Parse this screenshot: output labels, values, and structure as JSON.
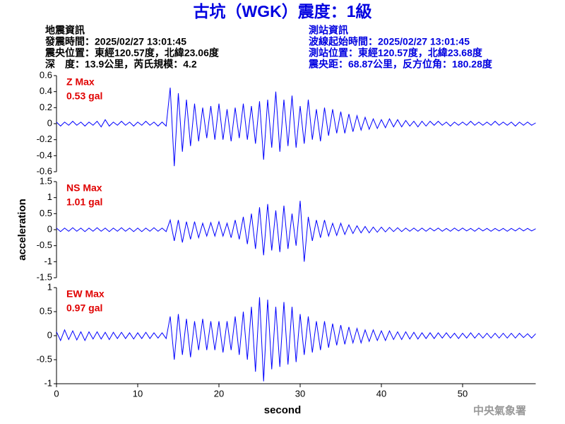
{
  "title": "古坑（WGK）震度：1級",
  "header": {
    "left": [
      "地震資訊",
      "發震時間：2025/02/27 13:01:45",
      "震央位置：東經120.57度，北緯23.06度",
      "深　度：13.9公里，芮氏規模：4.2"
    ],
    "right": [
      "測站資訊",
      "波線起始時間：2025/02/27 13:01:45",
      "測站位置：東經120.57度，北緯23.68度",
      "震央距：68.87公里，反方位角：180.28度"
    ]
  },
  "footer": "中央氣象署",
  "chart_data": [
    {
      "type": "line",
      "annotation": "Z Max",
      "max_label": "0.53 gal",
      "xlim": [
        0,
        59
      ],
      "ylim": [
        -0.6,
        0.6
      ],
      "yticks": [
        0.6,
        0.4,
        0.2,
        0,
        -0.2,
        -0.4,
        -0.6
      ],
      "x": [
        0,
        0.5,
        1,
        1.5,
        2,
        2.5,
        3,
        3.5,
        4,
        4.5,
        5,
        5.5,
        6,
        6.5,
        7,
        7.5,
        8,
        8.5,
        9,
        9.5,
        10,
        10.5,
        11,
        11.5,
        12,
        12.5,
        13,
        13.5,
        14,
        14.5,
        15,
        15.5,
        16,
        16.5,
        17,
        17.5,
        18,
        18.5,
        19,
        19.5,
        20,
        20.5,
        21,
        21.5,
        22,
        22.5,
        23,
        23.5,
        24,
        24.5,
        25,
        25.5,
        26,
        26.5,
        27,
        27.5,
        28,
        28.5,
        29,
        29.5,
        30,
        30.5,
        31,
        31.5,
        32,
        32.5,
        33,
        33.5,
        34,
        34.5,
        35,
        35.5,
        36,
        36.5,
        37,
        37.5,
        38,
        38.5,
        39,
        39.5,
        40,
        40.5,
        41,
        41.5,
        42,
        42.5,
        43,
        43.5,
        44,
        44.5,
        45,
        45.5,
        46,
        46.5,
        47,
        47.5,
        48,
        48.5,
        49,
        49.5,
        50,
        50.5,
        51,
        51.5,
        52,
        52.5,
        53,
        53.5,
        54,
        54.5,
        55,
        55.5,
        56,
        56.5,
        57,
        57.5,
        58,
        58.5,
        59
      ],
      "series": [
        {
          "color": "#0000ff",
          "values": [
            0.02,
            -0.03,
            0.02,
            -0.02,
            0.03,
            -0.02,
            0.02,
            -0.03,
            0.02,
            -0.02,
            0.03,
            -0.04,
            0.05,
            -0.03,
            0.02,
            -0.02,
            0.03,
            -0.02,
            0.02,
            -0.03,
            0.02,
            -0.02,
            0.03,
            -0.02,
            0.02,
            -0.03,
            0.02,
            -0.03,
            0.45,
            -0.53,
            0.38,
            -0.35,
            0.3,
            -0.28,
            0.25,
            -0.22,
            0.2,
            -0.18,
            0.22,
            -0.2,
            0.25,
            -0.2,
            0.18,
            -0.22,
            0.2,
            -0.18,
            0.25,
            -0.2,
            0.22,
            -0.25,
            0.28,
            -0.45,
            0.3,
            -0.3,
            0.4,
            -0.35,
            0.3,
            -0.28,
            0.35,
            -0.3,
            0.22,
            -0.25,
            0.3,
            -0.2,
            0.18,
            -0.22,
            0.2,
            -0.15,
            0.18,
            -0.12,
            0.15,
            -0.12,
            0.12,
            -0.1,
            0.1,
            -0.08,
            0.08,
            -0.07,
            0.06,
            -0.06,
            0.05,
            -0.05,
            0.06,
            -0.04,
            0.05,
            -0.04,
            0.04,
            -0.03,
            0.03,
            -0.04,
            0.03,
            -0.03,
            0.03,
            -0.02,
            0.03,
            -0.02,
            0.02,
            -0.03,
            0.02,
            -0.02,
            0.02,
            -0.02,
            0.03,
            -0.02,
            0.02,
            -0.02,
            0.02,
            -0.02,
            0.03,
            -0.02,
            0.02,
            -0.02,
            0.02,
            -0.03,
            0.02,
            -0.02,
            0.02,
            -0.02,
            0.01
          ]
        }
      ]
    },
    {
      "type": "line",
      "annotation": "NS Max",
      "max_label": "1.01 gal",
      "ylabel": "acceleration",
      "xlim": [
        0,
        59
      ],
      "ylim": [
        -1.5,
        1.5
      ],
      "yticks": [
        1.5,
        1,
        0.5,
        0,
        -0.5,
        -1,
        -1.5
      ],
      "x": [
        0,
        0.5,
        1,
        1.5,
        2,
        2.5,
        3,
        3.5,
        4,
        4.5,
        5,
        5.5,
        6,
        6.5,
        7,
        7.5,
        8,
        8.5,
        9,
        9.5,
        10,
        10.5,
        11,
        11.5,
        12,
        12.5,
        13,
        13.5,
        14,
        14.5,
        15,
        15.5,
        16,
        16.5,
        17,
        17.5,
        18,
        18.5,
        19,
        19.5,
        20,
        20.5,
        21,
        21.5,
        22,
        22.5,
        23,
        23.5,
        24,
        24.5,
        25,
        25.5,
        26,
        26.5,
        27,
        27.5,
        28,
        28.5,
        29,
        29.5,
        30,
        30.5,
        31,
        31.5,
        32,
        32.5,
        33,
        33.5,
        34,
        34.5,
        35,
        35.5,
        36,
        36.5,
        37,
        37.5,
        38,
        38.5,
        39,
        39.5,
        40,
        40.5,
        41,
        41.5,
        42,
        42.5,
        43,
        43.5,
        44,
        44.5,
        45,
        45.5,
        46,
        46.5,
        47,
        47.5,
        48,
        48.5,
        49,
        49.5,
        50,
        50.5,
        51,
        51.5,
        52,
        52.5,
        53,
        53.5,
        54,
        54.5,
        55,
        55.5,
        56,
        56.5,
        57,
        57.5,
        58,
        58.5,
        59
      ],
      "series": [
        {
          "color": "#0000ff",
          "values": [
            0.05,
            -0.06,
            0.05,
            -0.05,
            0.06,
            -0.05,
            0.05,
            -0.06,
            0.05,
            -0.05,
            0.06,
            -0.05,
            0.05,
            -0.06,
            0.05,
            -0.05,
            0.06,
            -0.05,
            0.05,
            -0.06,
            0.05,
            -0.06,
            0.05,
            -0.05,
            0.06,
            -0.05,
            0.05,
            -0.06,
            0.3,
            -0.35,
            0.3,
            -0.4,
            0.25,
            -0.3,
            0.25,
            -0.25,
            0.2,
            -0.2,
            0.22,
            -0.2,
            0.25,
            -0.2,
            0.2,
            -0.25,
            0.3,
            -0.3,
            0.4,
            -0.45,
            0.5,
            -0.6,
            0.7,
            -0.8,
            0.8,
            -0.65,
            0.6,
            -0.7,
            0.75,
            -0.6,
            0.5,
            -0.5,
            0.9,
            -1.0,
            0.4,
            -0.35,
            0.3,
            -0.25,
            0.3,
            -0.2,
            0.2,
            -0.18,
            0.2,
            -0.15,
            0.15,
            -0.12,
            0.12,
            -0.1,
            0.1,
            -0.1,
            0.08,
            -0.08,
            0.08,
            -0.07,
            0.07,
            -0.06,
            0.06,
            -0.06,
            0.05,
            -0.05,
            0.05,
            -0.05,
            0.05,
            -0.05,
            0.05,
            -0.04,
            0.05,
            -0.05,
            0.04,
            -0.05,
            0.05,
            -0.04,
            0.05,
            -0.04,
            0.04,
            -0.05,
            0.05,
            -0.04,
            0.04,
            -0.05,
            0.04,
            -0.04,
            0.04,
            -0.05,
            0.04,
            -0.04,
            0.05,
            -0.04,
            0.04,
            -0.04,
            0.03
          ]
        }
      ]
    },
    {
      "type": "line",
      "annotation": "EW Max",
      "max_label": "0.97 gal",
      "xlabel": "second",
      "xlim": [
        0,
        59
      ],
      "xticks": [
        0,
        10,
        20,
        30,
        40,
        50
      ],
      "ylim": [
        -1,
        1
      ],
      "yticks": [
        1,
        0.5,
        0,
        -0.5,
        -1
      ],
      "x": [
        0,
        0.5,
        1,
        1.5,
        2,
        2.5,
        3,
        3.5,
        4,
        4.5,
        5,
        5.5,
        6,
        6.5,
        7,
        7.5,
        8,
        8.5,
        9,
        9.5,
        10,
        10.5,
        11,
        11.5,
        12,
        12.5,
        13,
        13.5,
        14,
        14.5,
        15,
        15.5,
        16,
        16.5,
        17,
        17.5,
        18,
        18.5,
        19,
        19.5,
        20,
        20.5,
        21,
        21.5,
        22,
        22.5,
        23,
        23.5,
        24,
        24.5,
        25,
        25.5,
        26,
        26.5,
        27,
        27.5,
        28,
        28.5,
        29,
        29.5,
        30,
        30.5,
        31,
        31.5,
        32,
        32.5,
        33,
        33.5,
        34,
        34.5,
        35,
        35.5,
        36,
        36.5,
        37,
        37.5,
        38,
        38.5,
        39,
        39.5,
        40,
        40.5,
        41,
        41.5,
        42,
        42.5,
        43,
        43.5,
        44,
        44.5,
        45,
        45.5,
        46,
        46.5,
        47,
        47.5,
        48,
        48.5,
        49,
        49.5,
        50,
        50.5,
        51,
        51.5,
        52,
        52.5,
        53,
        53.5,
        54,
        54.5,
        55,
        55.5,
        56,
        56.5,
        57,
        57.5,
        58,
        58.5,
        59
      ],
      "series": [
        {
          "color": "#0000ff",
          "values": [
            0.08,
            -0.1,
            0.12,
            -0.08,
            0.1,
            -0.09,
            0.08,
            -0.1,
            0.08,
            -0.07,
            0.08,
            -0.07,
            0.07,
            -0.08,
            0.07,
            -0.06,
            0.07,
            -0.06,
            0.06,
            -0.07,
            0.06,
            -0.06,
            0.07,
            -0.06,
            0.06,
            -0.05,
            0.06,
            -0.06,
            0.4,
            -0.5,
            0.45,
            -0.4,
            0.35,
            -0.45,
            0.3,
            -0.3,
            0.35,
            -0.3,
            0.3,
            -0.3,
            0.3,
            -0.35,
            0.3,
            -0.3,
            0.4,
            -0.4,
            0.5,
            -0.5,
            0.6,
            -0.75,
            0.8,
            -0.95,
            0.75,
            -0.7,
            0.6,
            -0.65,
            0.7,
            -0.6,
            0.6,
            -0.55,
            0.45,
            -0.4,
            0.4,
            -0.35,
            0.3,
            -0.3,
            0.3,
            -0.25,
            0.25,
            -0.2,
            0.22,
            -0.18,
            0.18,
            -0.15,
            0.15,
            -0.15,
            0.12,
            -0.12,
            0.12,
            -0.1,
            0.1,
            -0.1,
            0.1,
            -0.08,
            0.08,
            -0.08,
            0.08,
            -0.07,
            0.07,
            -0.07,
            0.06,
            -0.06,
            0.06,
            -0.06,
            0.06,
            -0.05,
            0.06,
            -0.05,
            0.05,
            -0.06,
            0.05,
            -0.05,
            0.06,
            -0.05,
            0.05,
            -0.05,
            0.05,
            -0.05,
            0.05,
            -0.05,
            0.05,
            -0.05,
            0.05,
            -0.05,
            0.05,
            -0.04,
            0.04,
            -0.05,
            0.04
          ]
        }
      ]
    }
  ]
}
